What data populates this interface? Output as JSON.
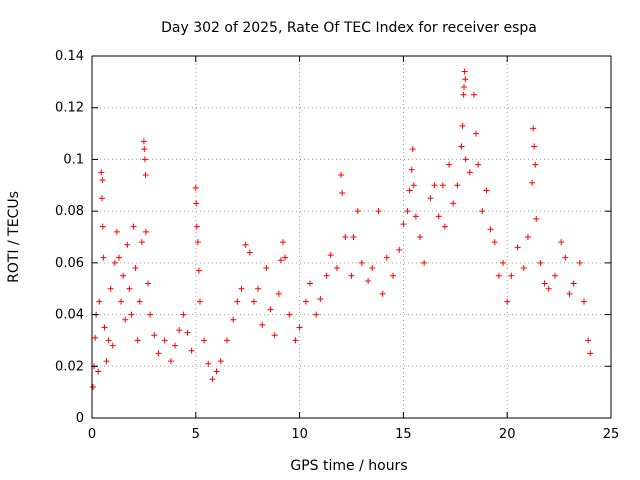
{
  "chart_data": {
    "type": "scatter",
    "title": "Day 302 of 2025, Rate Of TEC Index for receiver espa",
    "xlabel": "GPS time / hours",
    "ylabel": "ROTI / TECUs",
    "xlim": [
      0,
      25
    ],
    "ylim": [
      0,
      0.14
    ],
    "xticks": [
      0,
      5,
      10,
      15,
      20,
      25
    ],
    "xtick_labels": [
      "0",
      "5",
      "10",
      "15",
      "20",
      "25"
    ],
    "yticks": [
      0,
      0.02,
      0.04,
      0.06,
      0.08,
      0.1,
      0.12,
      0.14
    ],
    "ytick_labels": [
      "0",
      "0.02",
      "0.04",
      "0.06",
      "0.08",
      "0.1",
      "0.12",
      "0.14"
    ],
    "grid": true,
    "marker": "+",
    "series": [
      {
        "name": "espa",
        "color": "#ff0000",
        "points": [
          [
            0.05,
            0.012
          ],
          [
            0.1,
            0.02
          ],
          [
            0.15,
            0.031
          ],
          [
            0.2,
            0.04
          ],
          [
            0.3,
            0.018
          ],
          [
            0.35,
            0.045
          ],
          [
            0.45,
            0.095
          ],
          [
            0.48,
            0.085
          ],
          [
            0.5,
            0.092
          ],
          [
            0.52,
            0.074
          ],
          [
            0.55,
            0.062
          ],
          [
            0.6,
            0.035
          ],
          [
            0.7,
            0.022
          ],
          [
            0.8,
            0.03
          ],
          [
            0.9,
            0.05
          ],
          [
            1.0,
            0.028
          ],
          [
            1.1,
            0.06
          ],
          [
            1.2,
            0.072
          ],
          [
            1.3,
            0.062
          ],
          [
            1.4,
            0.045
          ],
          [
            1.5,
            0.055
          ],
          [
            1.6,
            0.038
          ],
          [
            1.7,
            0.067
          ],
          [
            1.8,
            0.05
          ],
          [
            1.9,
            0.04
          ],
          [
            2.0,
            0.074
          ],
          [
            2.1,
            0.058
          ],
          [
            2.2,
            0.03
          ],
          [
            2.3,
            0.045
          ],
          [
            2.4,
            0.068
          ],
          [
            2.5,
            0.107
          ],
          [
            2.52,
            0.104
          ],
          [
            2.55,
            0.1
          ],
          [
            2.58,
            0.094
          ],
          [
            2.6,
            0.072
          ],
          [
            2.7,
            0.052
          ],
          [
            2.8,
            0.04
          ],
          [
            3.0,
            0.032
          ],
          [
            3.2,
            0.025
          ],
          [
            3.5,
            0.03
          ],
          [
            3.8,
            0.022
          ],
          [
            4.0,
            0.028
          ],
          [
            4.2,
            0.034
          ],
          [
            4.4,
            0.04
          ],
          [
            4.6,
            0.033
          ],
          [
            4.8,
            0.026
          ],
          [
            5.0,
            0.089
          ],
          [
            5.02,
            0.083
          ],
          [
            5.05,
            0.074
          ],
          [
            5.1,
            0.068
          ],
          [
            5.15,
            0.057
          ],
          [
            5.2,
            0.045
          ],
          [
            5.4,
            0.03
          ],
          [
            5.6,
            0.021
          ],
          [
            5.8,
            0.015
          ],
          [
            6.0,
            0.018
          ],
          [
            6.2,
            0.022
          ],
          [
            6.5,
            0.03
          ],
          [
            6.8,
            0.038
          ],
          [
            7.0,
            0.045
          ],
          [
            7.2,
            0.05
          ],
          [
            7.4,
            0.067
          ],
          [
            7.6,
            0.064
          ],
          [
            7.8,
            0.045
          ],
          [
            8.0,
            0.05
          ],
          [
            8.2,
            0.036
          ],
          [
            8.4,
            0.058
          ],
          [
            8.6,
            0.042
          ],
          [
            8.8,
            0.032
          ],
          [
            9.0,
            0.048
          ],
          [
            9.1,
            0.061
          ],
          [
            9.2,
            0.068
          ],
          [
            9.3,
            0.062
          ],
          [
            9.5,
            0.04
          ],
          [
            9.8,
            0.03
          ],
          [
            10.0,
            0.035
          ],
          [
            10.3,
            0.045
          ],
          [
            10.5,
            0.052
          ],
          [
            10.8,
            0.04
          ],
          [
            11.0,
            0.046
          ],
          [
            11.3,
            0.055
          ],
          [
            11.5,
            0.063
          ],
          [
            11.8,
            0.058
          ],
          [
            12.0,
            0.094
          ],
          [
            12.05,
            0.087
          ],
          [
            12.2,
            0.07
          ],
          [
            12.5,
            0.055
          ],
          [
            12.6,
            0.07
          ],
          [
            12.8,
            0.08
          ],
          [
            13.0,
            0.06
          ],
          [
            13.3,
            0.053
          ],
          [
            13.5,
            0.058
          ],
          [
            13.8,
            0.08
          ],
          [
            14.0,
            0.048
          ],
          [
            14.2,
            0.062
          ],
          [
            14.5,
            0.055
          ],
          [
            14.8,
            0.065
          ],
          [
            15.0,
            0.075
          ],
          [
            15.2,
            0.08
          ],
          [
            15.3,
            0.088
          ],
          [
            15.4,
            0.096
          ],
          [
            15.45,
            0.104
          ],
          [
            15.5,
            0.09
          ],
          [
            15.6,
            0.078
          ],
          [
            15.8,
            0.07
          ],
          [
            16.0,
            0.06
          ],
          [
            16.3,
            0.085
          ],
          [
            16.5,
            0.09
          ],
          [
            16.7,
            0.078
          ],
          [
            16.9,
            0.09
          ],
          [
            17.0,
            0.074
          ],
          [
            17.2,
            0.098
          ],
          [
            17.4,
            0.083
          ],
          [
            17.6,
            0.09
          ],
          [
            17.8,
            0.105
          ],
          [
            17.85,
            0.113
          ],
          [
            17.9,
            0.125
          ],
          [
            17.92,
            0.128
          ],
          [
            17.95,
            0.134
          ],
          [
            17.98,
            0.131
          ],
          [
            18.0,
            0.1
          ],
          [
            18.2,
            0.095
          ],
          [
            18.4,
            0.125
          ],
          [
            18.5,
            0.11
          ],
          [
            18.6,
            0.098
          ],
          [
            18.8,
            0.08
          ],
          [
            19.0,
            0.088
          ],
          [
            19.2,
            0.073
          ],
          [
            19.4,
            0.068
          ],
          [
            19.6,
            0.055
          ],
          [
            19.8,
            0.06
          ],
          [
            20.0,
            0.045
          ],
          [
            20.2,
            0.055
          ],
          [
            20.5,
            0.066
          ],
          [
            20.8,
            0.058
          ],
          [
            21.0,
            0.07
          ],
          [
            21.2,
            0.091
          ],
          [
            21.25,
            0.112
          ],
          [
            21.3,
            0.105
          ],
          [
            21.35,
            0.098
          ],
          [
            21.4,
            0.077
          ],
          [
            21.6,
            0.06
          ],
          [
            21.8,
            0.052
          ],
          [
            22.0,
            0.05
          ],
          [
            22.3,
            0.055
          ],
          [
            22.6,
            0.068
          ],
          [
            22.8,
            0.062
          ],
          [
            23.0,
            0.048
          ],
          [
            23.2,
            0.052
          ],
          [
            23.5,
            0.06
          ],
          [
            23.7,
            0.045
          ],
          [
            23.9,
            0.03
          ],
          [
            24.0,
            0.025
          ]
        ]
      }
    ]
  }
}
